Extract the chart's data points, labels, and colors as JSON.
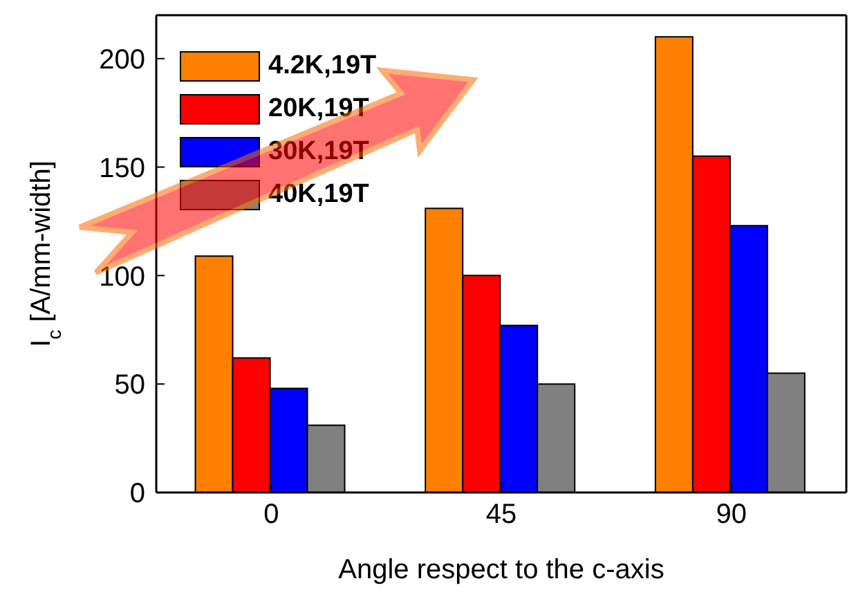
{
  "chart_data": {
    "type": "bar",
    "xlabel": "Angle respect to the c-axis",
    "ylabel": "I$_{c}$ [A/mm-width]",
    "categories": [
      "0",
      "45",
      "90"
    ],
    "series": [
      {
        "name": "4.2K,19T",
        "color": "#ff8000",
        "values": [
          109,
          131,
          210
        ]
      },
      {
        "name": "20K,19T",
        "color": "#ff0000",
        "values": [
          62,
          100,
          155
        ]
      },
      {
        "name": "30K,19T",
        "color": "#0000ff",
        "values": [
          48,
          77,
          123
        ]
      },
      {
        "name": "40K,19T",
        "color": "#808080",
        "values": [
          31,
          50,
          55
        ]
      }
    ],
    "ylim": [
      0,
      220
    ],
    "yticks": [
      0,
      50,
      100,
      150,
      200
    ],
    "legend": "top left"
  }
}
